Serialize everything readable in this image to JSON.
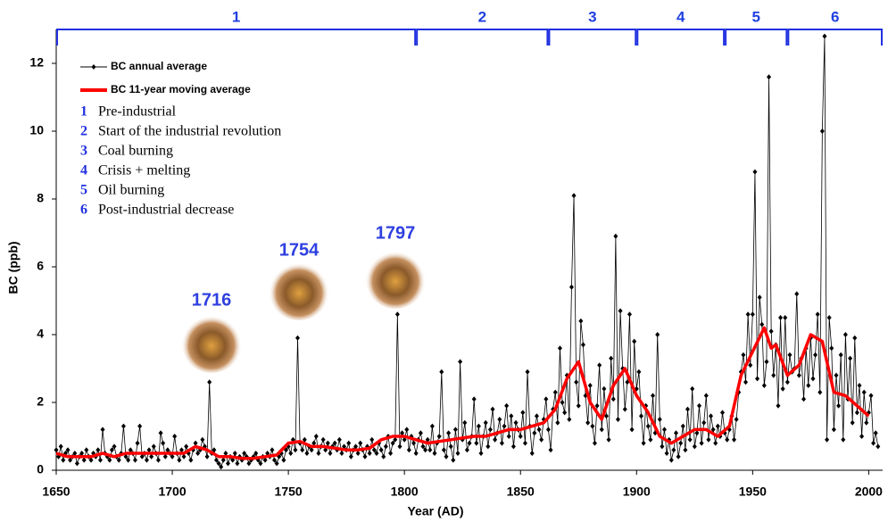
{
  "chart_data": {
    "type": "line",
    "xlabel": "Year (AD)",
    "ylabel": "BC (ppb)",
    "xlim": [
      1650,
      2006
    ],
    "ylim": [
      0,
      13
    ],
    "xticks": [
      1650,
      1700,
      1750,
      1800,
      1850,
      1900,
      1950,
      2000
    ],
    "yticks": [
      0,
      2,
      4,
      6,
      8,
      10,
      12
    ],
    "annotations": [
      "1716",
      "1754",
      "1797"
    ],
    "periods": [
      {
        "label": "1",
        "name": "Pre-industrial",
        "start": 1650,
        "end": 1805
      },
      {
        "label": "2",
        "name": "Start of the industrial revolution",
        "start": 1805,
        "end": 1862
      },
      {
        "label": "3",
        "name": "Coal burning",
        "start": 1862,
        "end": 1900
      },
      {
        "label": "4",
        "name": "Crisis + melting",
        "start": 1900,
        "end": 1938
      },
      {
        "label": "5",
        "name": "Oil burning",
        "start": 1938,
        "end": 1965
      },
      {
        "label": "6",
        "name": "Post-industrial decrease",
        "start": 1965,
        "end": 2006
      }
    ],
    "series": [
      {
        "name": "BC annual average",
        "color": "#000000",
        "x": [
          1650,
          1651,
          1652,
          1653,
          1654,
          1655,
          1656,
          1657,
          1658,
          1659,
          1660,
          1661,
          1662,
          1663,
          1664,
          1665,
          1666,
          1667,
          1668,
          1669,
          1670,
          1671,
          1672,
          1673,
          1674,
          1675,
          1676,
          1677,
          1678,
          1679,
          1680,
          1681,
          1682,
          1683,
          1684,
          1685,
          1686,
          1687,
          1688,
          1689,
          1690,
          1691,
          1692,
          1693,
          1694,
          1695,
          1696,
          1697,
          1698,
          1699,
          1700,
          1701,
          1702,
          1703,
          1704,
          1705,
          1706,
          1707,
          1708,
          1709,
          1710,
          1711,
          1712,
          1713,
          1714,
          1715,
          1716,
          1717,
          1718,
          1719,
          1720,
          1721,
          1722,
          1723,
          1724,
          1725,
          1726,
          1727,
          1728,
          1729,
          1730,
          1731,
          1732,
          1733,
          1734,
          1735,
          1736,
          1737,
          1738,
          1739,
          1740,
          1741,
          1742,
          1743,
          1744,
          1745,
          1746,
          1747,
          1748,
          1749,
          1750,
          1751,
          1752,
          1753,
          1754,
          1755,
          1756,
          1757,
          1758,
          1759,
          1760,
          1761,
          1762,
          1763,
          1764,
          1765,
          1766,
          1767,
          1768,
          1769,
          1770,
          1771,
          1772,
          1773,
          1774,
          1775,
          1776,
          1777,
          1778,
          1779,
          1780,
          1781,
          1782,
          1783,
          1784,
          1785,
          1786,
          1787,
          1788,
          1789,
          1790,
          1791,
          1792,
          1793,
          1794,
          1795,
          1796,
          1797,
          1798,
          1799,
          1800,
          1801,
          1802,
          1803,
          1804,
          1805,
          1806,
          1807,
          1808,
          1809,
          1810,
          1811,
          1812,
          1813,
          1814,
          1815,
          1816,
          1817,
          1818,
          1819,
          1820,
          1821,
          1822,
          1823,
          1824,
          1825,
          1826,
          1827,
          1828,
          1829,
          1830,
          1831,
          1832,
          1833,
          1834,
          1835,
          1836,
          1837,
          1838,
          1839,
          1840,
          1841,
          1842,
          1843,
          1844,
          1845,
          1846,
          1847,
          1848,
          1849,
          1850,
          1851,
          1852,
          1853,
          1854,
          1855,
          1856,
          1857,
          1858,
          1859,
          1860,
          1861,
          1862,
          1863,
          1864,
          1865,
          1866,
          1867,
          1868,
          1869,
          1870,
          1871,
          1872,
          1873,
          1874,
          1875,
          1876,
          1877,
          1878,
          1879,
          1880,
          1881,
          1882,
          1883,
          1884,
          1885,
          1886,
          1887,
          1888,
          1889,
          1890,
          1891,
          1892,
          1893,
          1894,
          1895,
          1896,
          1897,
          1898,
          1899,
          1900,
          1901,
          1902,
          1903,
          1904,
          1905,
          1906,
          1907,
          1908,
          1909,
          1910,
          1911,
          1912,
          1913,
          1914,
          1915,
          1916,
          1917,
          1918,
          1919,
          1920,
          1921,
          1922,
          1923,
          1924,
          1925,
          1926,
          1927,
          1928,
          1929,
          1930,
          1931,
          1932,
          1933,
          1934,
          1935,
          1936,
          1937,
          1938,
          1939,
          1940,
          1941,
          1942,
          1943,
          1944,
          1945,
          1946,
          1947,
          1948,
          1949,
          1950,
          1951,
          1952,
          1953,
          1954,
          1955,
          1956,
          1957,
          1958,
          1959,
          1960,
          1961,
          1962,
          1963,
          1964,
          1965,
          1966,
          1967,
          1968,
          1969,
          1970,
          1971,
          1972,
          1973,
          1974,
          1975,
          1976,
          1977,
          1978,
          1979,
          1980,
          1981,
          1982,
          1983,
          1984,
          1985,
          1986,
          1987,
          1988,
          1989,
          1990,
          1991,
          1992,
          1993,
          1994,
          1995,
          1996,
          1997,
          1998,
          1999,
          2000,
          2001,
          2002,
          2003,
          2004
        ],
        "values": [
          0.6,
          0.4,
          0.7,
          0.3,
          0.5,
          0.6,
          0.3,
          0.4,
          0.5,
          0.2,
          0.4,
          0.5,
          0.3,
          0.6,
          0.4,
          0.3,
          0.5,
          0.4,
          0.6,
          0.3,
          1.2,
          0.5,
          0.4,
          0.3,
          0.6,
          0.7,
          0.4,
          0.3,
          0.5,
          1.3,
          0.4,
          0.3,
          0.6,
          0.5,
          0.3,
          0.8,
          1.3,
          0.4,
          0.5,
          0.3,
          0.6,
          0.4,
          0.7,
          0.5,
          0.3,
          1.1,
          0.8,
          0.4,
          0.6,
          0.5,
          0.4,
          1.0,
          0.5,
          0.3,
          0.6,
          0.4,
          0.7,
          0.5,
          0.3,
          0.6,
          0.8,
          0.5,
          0.6,
          0.9,
          0.7,
          0.4,
          2.6,
          0.5,
          0.6,
          0.3,
          0.2,
          0.1,
          0.3,
          0.5,
          0.2,
          0.4,
          0.3,
          0.5,
          0.2,
          0.4,
          0.3,
          0.5,
          0.4,
          0.2,
          0.3,
          0.4,
          0.5,
          0.3,
          0.2,
          0.4,
          0.3,
          0.5,
          0.4,
          0.6,
          0.3,
          0.2,
          0.4,
          0.5,
          0.3,
          0.6,
          0.7,
          0.5,
          0.9,
          0.6,
          3.9,
          0.8,
          0.6,
          0.9,
          0.5,
          0.7,
          0.6,
          0.8,
          1.0,
          0.5,
          0.7,
          0.9,
          0.6,
          0.8,
          0.5,
          0.7,
          0.8,
          0.6,
          0.9,
          0.5,
          0.7,
          0.6,
          0.8,
          0.4,
          0.6,
          0.7,
          0.5,
          0.8,
          0.6,
          0.4,
          0.7,
          0.5,
          0.9,
          0.6,
          0.5,
          0.8,
          0.6,
          0.4,
          0.7,
          1.0,
          0.5,
          0.8,
          0.9,
          4.6,
          0.7,
          1.1,
          0.9,
          1.2,
          0.6,
          1.0,
          0.8,
          0.5,
          0.9,
          1.1,
          0.7,
          0.6,
          0.9,
          0.6,
          1.3,
          0.5,
          0.8,
          1.0,
          2.9,
          0.6,
          0.4,
          1.1,
          0.7,
          0.3,
          1.2,
          0.5,
          3.2,
          0.9,
          1.4,
          0.6,
          0.8,
          1.0,
          2.1,
          0.8,
          1.3,
          0.5,
          1.0,
          1.4,
          0.7,
          1.2,
          1.8,
          0.9,
          1.1,
          1.5,
          0.8,
          1.3,
          1.9,
          1.0,
          1.6,
          0.7,
          1.4,
          1.2,
          1.0,
          1.7,
          0.8,
          2.9,
          1.3,
          0.5,
          1.1,
          1.6,
          1.2,
          0.9,
          1.5,
          2.1,
          1.2,
          0.6,
          1.8,
          2.3,
          1.4,
          3.6,
          2.0,
          1.7,
          2.8,
          1.5,
          5.4,
          8.1,
          2.6,
          1.9,
          4.4,
          3.7,
          2.2,
          1.4,
          2.5,
          1.3,
          0.8,
          1.9,
          3.1,
          1.2,
          2.4,
          1.6,
          0.9,
          3.3,
          2.1,
          6.9,
          1.5,
          4.7,
          3.0,
          1.8,
          2.6,
          4.6,
          1.2,
          3.8,
          2.4,
          2.9,
          1.6,
          0.8,
          1.9,
          1.3,
          0.9,
          2.2,
          1.1,
          4.0,
          1.5,
          0.7,
          1.2,
          0.5,
          0.9,
          0.3,
          0.6,
          1.1,
          0.4,
          0.8,
          1.3,
          0.6,
          1.8,
          0.9,
          2.4,
          0.7,
          1.1,
          1.9,
          0.8,
          1.4,
          2.2,
          0.9,
          1.6,
          1.2,
          0.8,
          1.3,
          1.0,
          1.7,
          1.1,
          0.9,
          1.2,
          1.6,
          0.9,
          1.5,
          2.3,
          2.9,
          3.4,
          2.6,
          4.6,
          3.1,
          4.6,
          8.8,
          2.7,
          5.1,
          4.3,
          2.5,
          3.2,
          11.6,
          4.1,
          2.8,
          3.7,
          1.9,
          4.5,
          2.4,
          4.5,
          2.6,
          3.4,
          2.9,
          3.0,
          5.2,
          2.8,
          3.3,
          2.1,
          3.6,
          2.5,
          3.9,
          2.7,
          3.4,
          4.6,
          2.3,
          10.0,
          12.8,
          0.9,
          4.5,
          3.6,
          1.2,
          2.8,
          1.9,
          3.4,
          0.9,
          4.0,
          2.1,
          3.3,
          1.4,
          3.9,
          1.7,
          2.5,
          1.0,
          2.3,
          1.4,
          1.7,
          2.2,
          0.8,
          1.1,
          0.7
        ]
      },
      {
        "name": "BC 11-year moving average",
        "color": "#ff0000",
        "x": [
          1650,
          1655,
          1660,
          1665,
          1670,
          1675,
          1680,
          1685,
          1690,
          1695,
          1700,
          1705,
          1710,
          1715,
          1720,
          1725,
          1730,
          1735,
          1740,
          1745,
          1750,
          1755,
          1760,
          1765,
          1770,
          1775,
          1780,
          1785,
          1790,
          1795,
          1800,
          1805,
          1810,
          1815,
          1820,
          1825,
          1830,
          1835,
          1840,
          1845,
          1850,
          1855,
          1860,
          1865,
          1870,
          1875,
          1880,
          1885,
          1890,
          1895,
          1900,
          1905,
          1910,
          1915,
          1920,
          1925,
          1930,
          1935,
          1940,
          1945,
          1950,
          1955,
          1958,
          1960,
          1965,
          1970,
          1975,
          1980,
          1985,
          1990,
          1995,
          2000
        ],
        "values": [
          0.5,
          0.4,
          0.4,
          0.4,
          0.5,
          0.4,
          0.5,
          0.5,
          0.5,
          0.5,
          0.5,
          0.5,
          0.7,
          0.6,
          0.4,
          0.4,
          0.35,
          0.35,
          0.4,
          0.45,
          0.8,
          0.85,
          0.7,
          0.7,
          0.65,
          0.6,
          0.6,
          0.65,
          0.9,
          1.0,
          1.0,
          0.9,
          0.8,
          0.85,
          0.9,
          0.95,
          1.0,
          1.0,
          1.1,
          1.2,
          1.2,
          1.3,
          1.4,
          1.8,
          2.7,
          3.2,
          2.0,
          1.5,
          2.5,
          3.0,
          2.2,
          1.7,
          1.0,
          0.8,
          1.0,
          1.2,
          1.2,
          1.0,
          1.3,
          2.8,
          3.5,
          4.2,
          3.6,
          3.7,
          2.8,
          3.1,
          4.0,
          3.8,
          2.3,
          2.2,
          1.9,
          1.6
        ]
      }
    ]
  }
}
